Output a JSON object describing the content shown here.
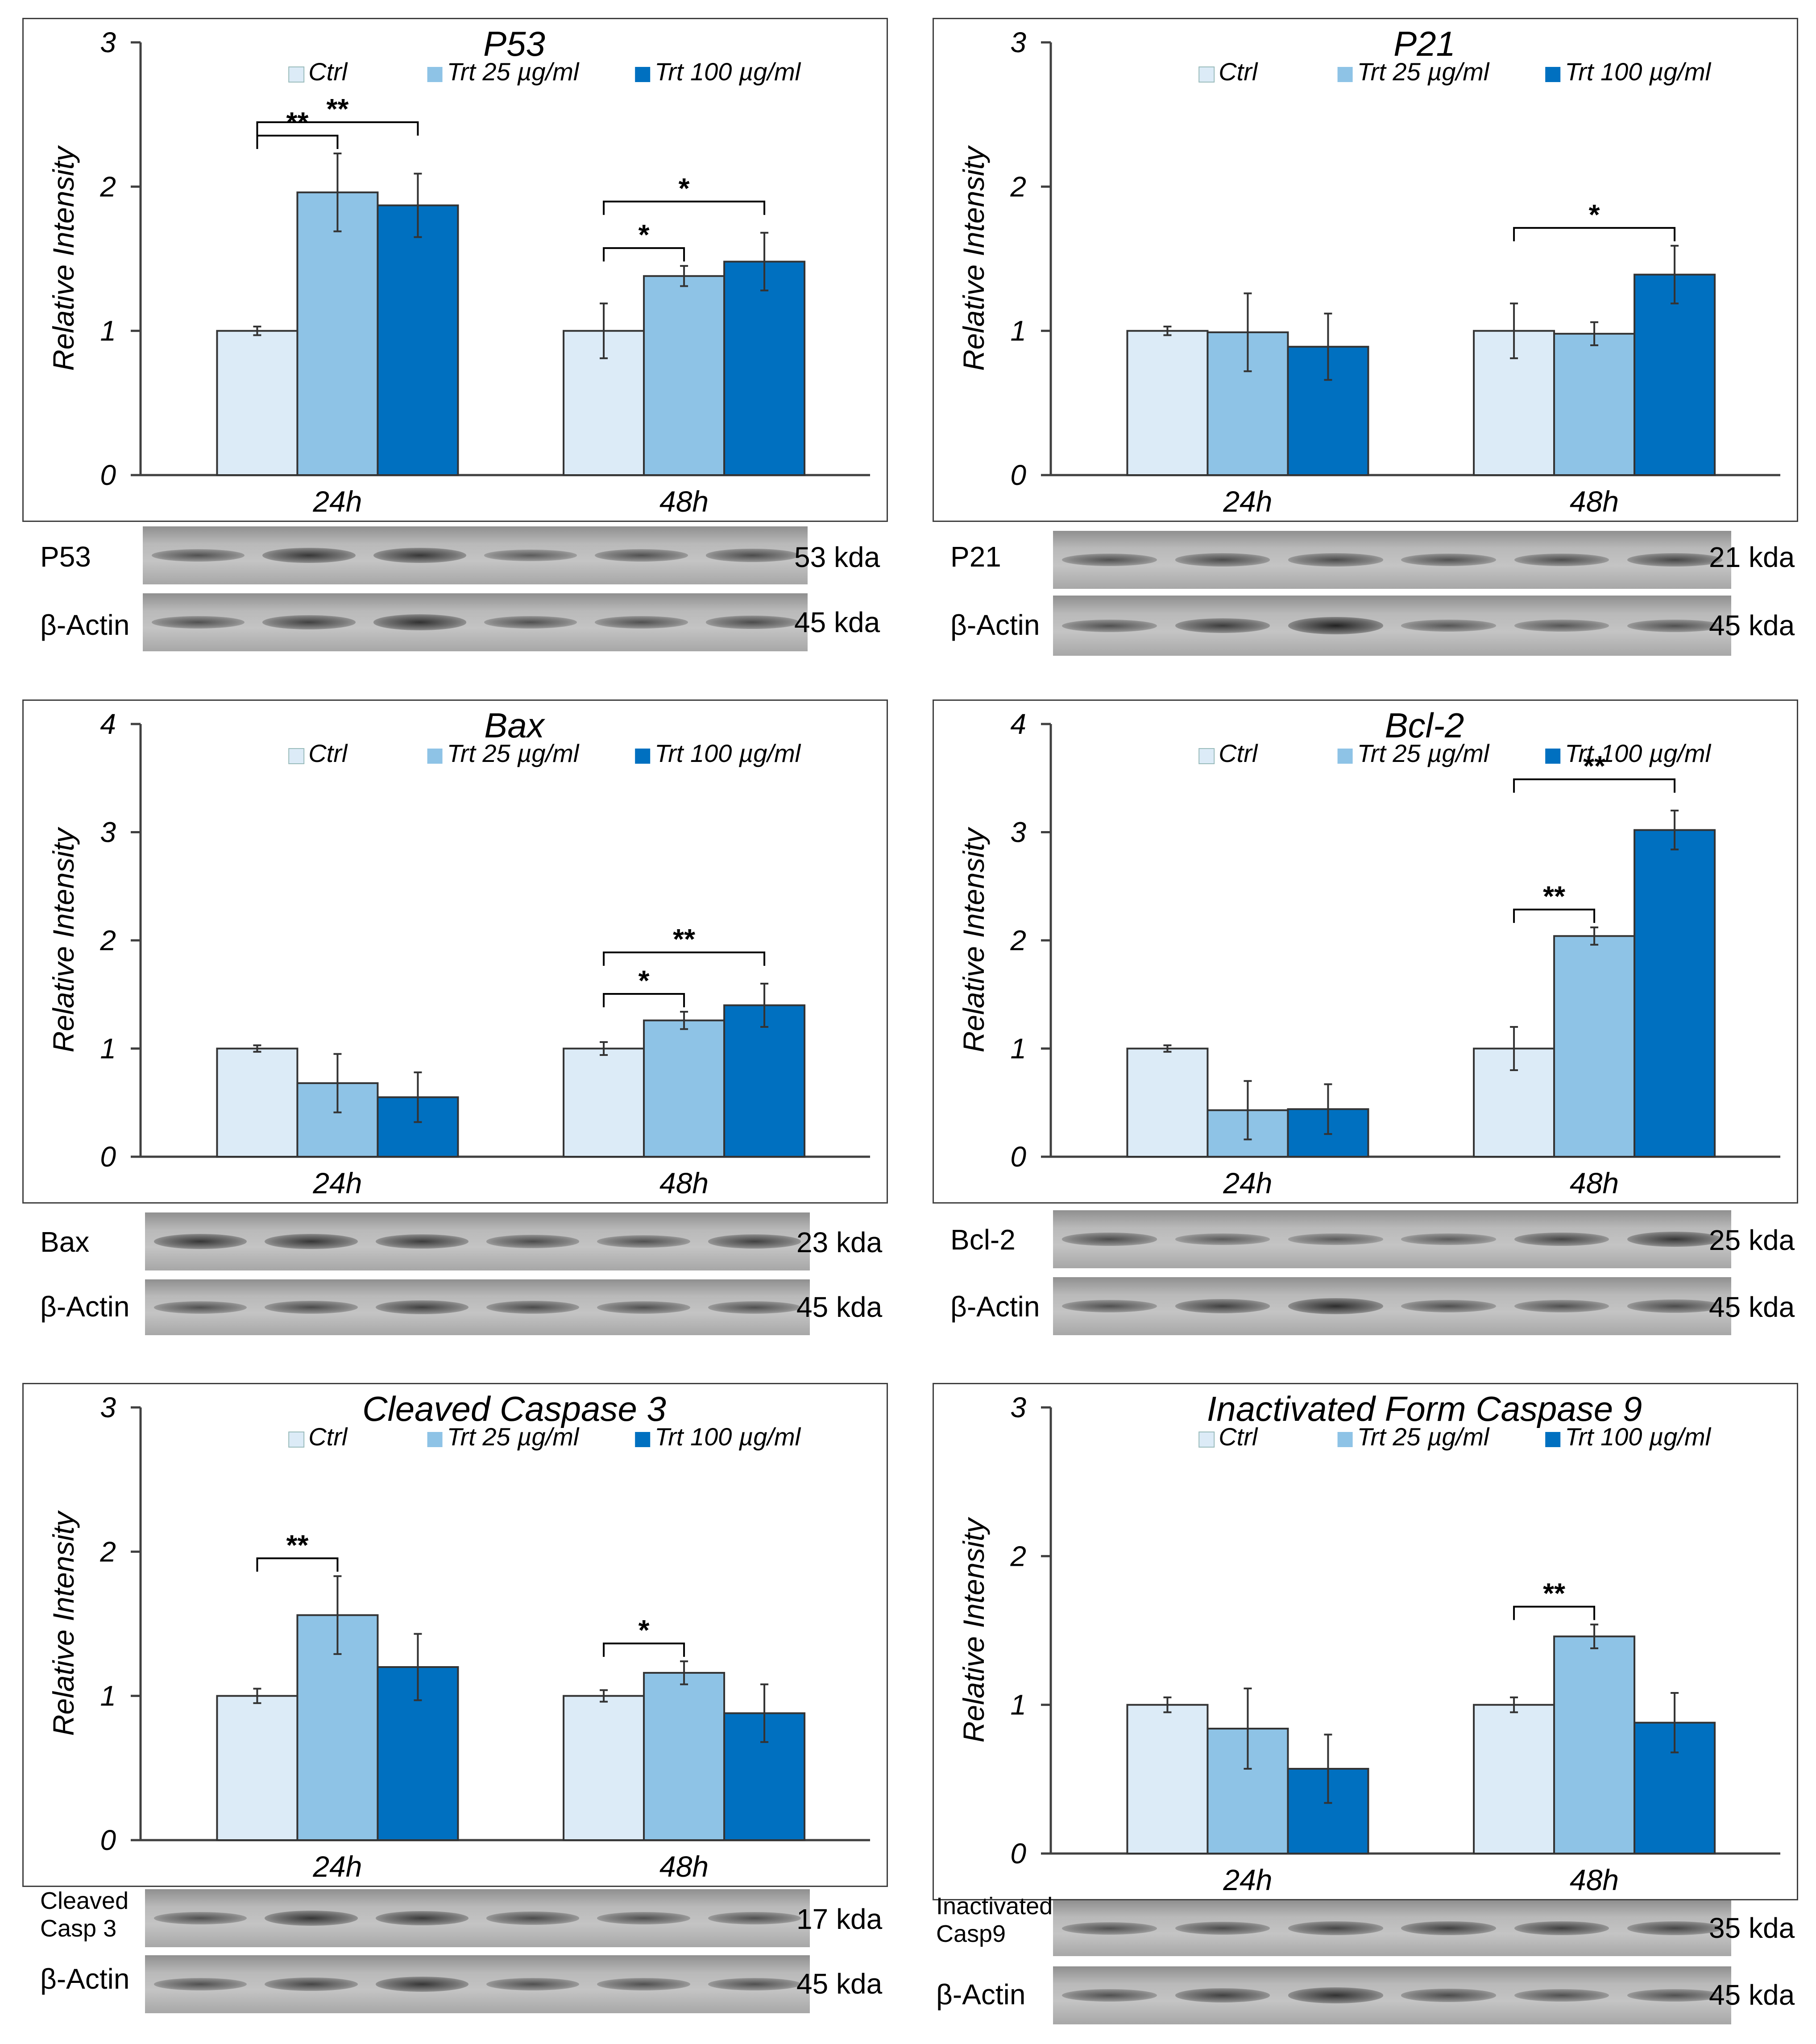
{
  "colors": {
    "ctrl": "#dcebf7",
    "trt25": "#8ec3e6",
    "trt100": "#0070c0",
    "axis": "#404040",
    "border": "#404040"
  },
  "legend": [
    "Ctrl",
    "Trt 25 µg/ml",
    "Trt 100 µg/ml"
  ],
  "y_axis_label": "Relative Intensity",
  "chart_data": [
    {
      "type": "bar",
      "title": "P53",
      "categories": [
        "24h",
        "48h"
      ],
      "ylabel": "Relative Intensity",
      "ylim": [
        0,
        3
      ],
      "yticks": [
        0,
        1,
        2,
        3
      ],
      "series": [
        {
          "name": "Ctrl",
          "values": [
            1.0,
            1.0
          ],
          "errors": [
            0.03,
            0.19
          ]
        },
        {
          "name": "Trt 25 µg/ml",
          "values": [
            1.96,
            1.38
          ],
          "errors": [
            0.27,
            0.07
          ]
        },
        {
          "name": "Trt 100 µg/ml",
          "values": [
            1.87,
            1.48
          ],
          "errors": [
            0.22,
            0.2
          ]
        }
      ],
      "significance": [
        {
          "group": 0,
          "to": 1,
          "label": "**"
        },
        {
          "group": 0,
          "to": 2,
          "label": "**"
        },
        {
          "group": 1,
          "to": 1,
          "label": "*"
        },
        {
          "group": 1,
          "to": 2,
          "label": "*"
        }
      ]
    },
    {
      "type": "bar",
      "title": "P21",
      "categories": [
        "24h",
        "48h"
      ],
      "ylabel": "Relative Intensity",
      "ylim": [
        0,
        3
      ],
      "yticks": [
        0,
        1,
        2,
        3
      ],
      "series": [
        {
          "name": "Ctrl",
          "values": [
            1.0,
            1.0
          ],
          "errors": [
            0.03,
            0.19
          ]
        },
        {
          "name": "Trt 25 µg/ml",
          "values": [
            0.99,
            0.98
          ],
          "errors": [
            0.27,
            0.08
          ]
        },
        {
          "name": "Trt 100 µg/ml",
          "values": [
            0.89,
            1.39
          ],
          "errors": [
            0.23,
            0.2
          ]
        }
      ],
      "significance": [
        {
          "group": 1,
          "to": 2,
          "label": "*"
        }
      ]
    },
    {
      "type": "bar",
      "title": "Bax",
      "categories": [
        "24h",
        "48h"
      ],
      "ylabel": "Relative Intensity",
      "ylim": [
        0,
        4
      ],
      "yticks": [
        0,
        1,
        2,
        3,
        4
      ],
      "series": [
        {
          "name": "Ctrl",
          "values": [
            1.0,
            1.0
          ],
          "errors": [
            0.03,
            0.06
          ]
        },
        {
          "name": "Trt 25 µg/ml",
          "values": [
            0.68,
            1.26
          ],
          "errors": [
            0.27,
            0.08
          ]
        },
        {
          "name": "Trt 100 µg/ml",
          "values": [
            0.55,
            1.4
          ],
          "errors": [
            0.23,
            0.2
          ]
        }
      ],
      "significance": [
        {
          "group": 1,
          "to": 1,
          "label": "*"
        },
        {
          "group": 1,
          "to": 2,
          "label": "**"
        }
      ]
    },
    {
      "type": "bar",
      "title": "Bcl-2",
      "categories": [
        "24h",
        "48h"
      ],
      "ylabel": "Relative Intensity",
      "ylim": [
        0,
        4
      ],
      "yticks": [
        0,
        1,
        2,
        3,
        4
      ],
      "series": [
        {
          "name": "Ctrl",
          "values": [
            1.0,
            1.0
          ],
          "errors": [
            0.03,
            0.2
          ]
        },
        {
          "name": "Trt 25 µg/ml",
          "values": [
            0.43,
            2.04
          ],
          "errors": [
            0.27,
            0.08
          ]
        },
        {
          "name": "Trt 100 µg/ml",
          "values": [
            0.44,
            3.02
          ],
          "errors": [
            0.23,
            0.18
          ]
        }
      ],
      "significance": [
        {
          "group": 1,
          "to": 1,
          "label": "**"
        },
        {
          "group": 1,
          "to": 2,
          "label": "**"
        }
      ]
    },
    {
      "type": "bar",
      "title": "Cleaved Caspase 3",
      "categories": [
        "24h",
        "48h"
      ],
      "ylabel": "Relative Intensity",
      "ylim": [
        0,
        3
      ],
      "yticks": [
        0,
        1,
        2,
        3
      ],
      "series": [
        {
          "name": "Ctrl",
          "values": [
            1.0,
            1.0
          ],
          "errors": [
            0.05,
            0.04
          ]
        },
        {
          "name": "Trt 25 µg/ml",
          "values": [
            1.56,
            1.16
          ],
          "errors": [
            0.27,
            0.08
          ]
        },
        {
          "name": "Trt 100 µg/ml",
          "values": [
            1.2,
            0.88
          ],
          "errors": [
            0.23,
            0.2
          ]
        }
      ],
      "significance": [
        {
          "group": 0,
          "to": 1,
          "label": "**"
        },
        {
          "group": 1,
          "to": 1,
          "label": "*"
        }
      ]
    },
    {
      "type": "bar",
      "title": "Inactivated Form Caspase 9",
      "categories": [
        "24h",
        "48h"
      ],
      "ylabel": "Relative Intensity",
      "ylim": [
        0,
        3
      ],
      "yticks": [
        0,
        1,
        2,
        3
      ],
      "series": [
        {
          "name": "Ctrl",
          "values": [
            1.0,
            1.0
          ],
          "errors": [
            0.05,
            0.05
          ]
        },
        {
          "name": "Trt 25 µg/ml",
          "values": [
            0.84,
            1.46
          ],
          "errors": [
            0.27,
            0.08
          ]
        },
        {
          "name": "Trt 100 µg/ml",
          "values": [
            0.57,
            0.88
          ],
          "errors": [
            0.23,
            0.2
          ]
        }
      ],
      "significance": [
        {
          "group": 1,
          "to": 1,
          "label": "**"
        }
      ]
    }
  ],
  "blots": [
    {
      "target": {
        "label": "P53",
        "kda": "53 kda"
      },
      "actin": {
        "label": "β-Actin",
        "kda": "45 kda"
      }
    },
    {
      "target": {
        "label": "P21",
        "kda": "21 kda"
      },
      "actin": {
        "label": "β-Actin",
        "kda": "45 kda"
      }
    },
    {
      "target": {
        "label": "Bax",
        "kda": "23 kda"
      },
      "actin": {
        "label": "β-Actin",
        "kda": "45 kda"
      }
    },
    {
      "target": {
        "label": "Bcl-2",
        "kda": "25 kda"
      },
      "actin": {
        "label": "β-Actin",
        "kda": "45 kda"
      }
    },
    {
      "target": {
        "label_line1": "Cleaved",
        "label_line2": "Casp 3",
        "kda": "17 kda"
      },
      "actin": {
        "label": "β-Actin",
        "kda": "45 kda"
      }
    },
    {
      "target": {
        "label_line1": "Inactivated",
        "label_line2": "Casp9",
        "kda": "35 kda"
      },
      "actin": {
        "label": "β-Actin",
        "kda": "45 kda"
      }
    }
  ]
}
